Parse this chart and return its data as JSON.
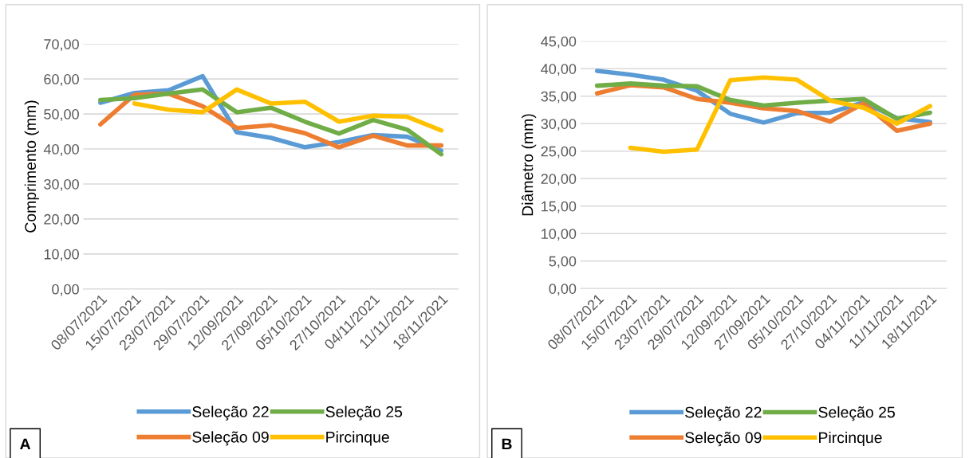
{
  "chart_data": [
    {
      "type": "line",
      "ylabel": "Comprimento (mm)",
      "categories": [
        "08/07/2021",
        "15/07/2021",
        "23/07/2021",
        "29/07/2021",
        "12/09/2021",
        "27/09/2021",
        "05/10/2021",
        "27/10/2021",
        "04/11/2021",
        "11/11/2021",
        "18/11/2021"
      ],
      "series": [
        {
          "name": "Seleção 22",
          "color": "#5b9bd5",
          "values": [
            53.2,
            56,
            56.8,
            60.8,
            44.8,
            43.2,
            40.5,
            42,
            44,
            43.5,
            39.5
          ]
        },
        {
          "name": "Seleção 09",
          "color": "#ed7d31",
          "values": [
            47,
            55.5,
            55.8,
            52.2,
            46,
            46.8,
            44.5,
            40.5,
            43.8,
            41,
            41
          ]
        },
        {
          "name": "Seleção 25",
          "color": "#70ad47",
          "values": [
            54,
            54.5,
            55.8,
            57,
            50.5,
            51.8,
            47.8,
            44.4,
            48.3,
            45.5,
            38.5
          ]
        },
        {
          "name": "Pircinque",
          "color": "#ffc000",
          "values": [
            null,
            53,
            51.2,
            50.5,
            57,
            53,
            53.5,
            47.8,
            49.5,
            49.2,
            45.3
          ]
        }
      ],
      "ylim": [
        0,
        70
      ],
      "yticks": [
        {
          "value": 0,
          "label": "0,00"
        },
        {
          "value": 10,
          "label": "10,00"
        },
        {
          "value": 20,
          "label": "20,00"
        },
        {
          "value": 30,
          "label": "30,00"
        },
        {
          "value": 40,
          "label": "40,00"
        },
        {
          "value": 50,
          "label": "50,00"
        },
        {
          "value": 60,
          "label": "60,00"
        },
        {
          "value": 70,
          "label": "70,00"
        }
      ],
      "grid": "y",
      "legend": "bottom",
      "annotations": [
        "A"
      ]
    },
    {
      "type": "line",
      "ylabel": "Diâmetro (mm)",
      "categories": [
        "08/07/2021",
        "15/07/2021",
        "23/07/2021",
        "29/07/2021",
        "12/09/2021",
        "27/09/2021",
        "05/10/2021",
        "27/10/2021",
        "04/11/2021",
        "11/11/2021",
        "18/11/2021"
      ],
      "series": [
        {
          "name": "Seleção 22",
          "color": "#5b9bd5",
          "values": [
            39.6,
            38.9,
            38,
            36,
            31.8,
            30.2,
            31.9,
            32,
            33.9,
            31,
            30.3
          ]
        },
        {
          "name": "Seleção 09",
          "color": "#ed7d31",
          "values": [
            35.5,
            37,
            36.6,
            34.5,
            33.8,
            32.8,
            32.3,
            30.4,
            33.7,
            28.7,
            30
          ]
        },
        {
          "name": "Seleção 25",
          "color": "#70ad47",
          "values": [
            36.9,
            37.3,
            36.9,
            36.8,
            34.3,
            33.3,
            33.8,
            34.2,
            34.5,
            30.9,
            32
          ]
        },
        {
          "name": "Pircinque",
          "color": "#ffc000",
          "values": [
            null,
            25.6,
            24.9,
            25.3,
            37.9,
            38.4,
            38,
            34.2,
            32.9,
            30,
            33.2
          ]
        }
      ],
      "ylim": [
        0,
        45
      ],
      "yticks": [
        {
          "value": 0,
          "label": "0,00"
        },
        {
          "value": 5,
          "label": "5,00"
        },
        {
          "value": 10,
          "label": "10,00"
        },
        {
          "value": 15,
          "label": "15,00"
        },
        {
          "value": 20,
          "label": "20,00"
        },
        {
          "value": 25,
          "label": "25,00"
        },
        {
          "value": 30,
          "label": "30,00"
        },
        {
          "value": 35,
          "label": "35,00"
        },
        {
          "value": 40,
          "label": "40,00"
        },
        {
          "value": 45,
          "label": "45,00"
        }
      ],
      "grid": "y",
      "legend": "bottom",
      "annotations": [
        "B"
      ]
    }
  ]
}
